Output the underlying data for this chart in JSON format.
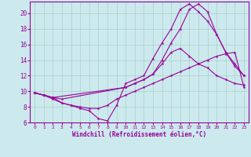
{
  "xlabel": "Windchill (Refroidissement éolien,°C)",
  "bg_color": "#cceaed",
  "grid_color": "#aacccc",
  "line_color": "#990099",
  "line1_x": [
    0,
    1,
    2,
    3,
    4,
    5,
    6,
    7,
    8,
    9,
    10,
    11,
    12,
    13,
    14,
    15,
    16,
    17,
    18,
    19,
    20,
    21,
    22,
    23
  ],
  "line1_y": [
    9.8,
    9.5,
    9.2,
    8.5,
    8.2,
    7.8,
    7.5,
    6.5,
    6.2,
    8.2,
    11.0,
    11.5,
    12.0,
    14.2,
    16.2,
    18.0,
    20.5,
    21.2,
    20.2,
    19.0,
    17.3,
    15.0,
    13.2,
    12.0
  ],
  "line2_x": [
    0,
    1,
    2,
    3,
    4,
    5,
    6,
    7,
    8,
    9,
    10,
    11,
    12,
    13,
    14,
    15,
    16,
    17,
    18,
    19,
    20,
    21,
    22,
    23
  ],
  "line2_y": [
    9.8,
    9.5,
    9.0,
    8.5,
    8.2,
    8.0,
    7.8,
    7.8,
    8.2,
    9.0,
    9.5,
    10.0,
    10.5,
    11.0,
    11.5,
    12.0,
    12.5,
    13.0,
    13.5,
    14.0,
    14.5,
    14.8,
    15.0,
    10.5
  ],
  "line3_x": [
    0,
    1,
    2,
    3,
    10,
    11,
    12,
    13,
    14,
    15,
    16,
    17,
    18,
    19,
    20,
    21,
    22,
    23
  ],
  "line3_y": [
    9.8,
    9.5,
    9.2,
    9.0,
    10.5,
    11.0,
    11.5,
    12.2,
    13.5,
    15.0,
    15.5,
    14.5,
    13.5,
    13.0,
    12.0,
    11.5,
    11.0,
    10.8
  ],
  "line4_x": [
    0,
    1,
    2,
    10,
    11,
    12,
    13,
    14,
    15,
    16,
    17,
    18,
    19,
    20,
    21,
    22,
    23
  ],
  "line4_y": [
    9.8,
    9.5,
    9.2,
    10.5,
    11.0,
    11.5,
    12.2,
    14.0,
    16.2,
    18.0,
    20.5,
    21.2,
    20.2,
    17.3,
    15.0,
    13.5,
    12.0
  ],
  "ylim_min": 6,
  "ylim_max": 21,
  "xlim_min": -0.5,
  "xlim_max": 23.5,
  "yticks": [
    6,
    8,
    10,
    12,
    14,
    16,
    18,
    20
  ],
  "xticks": [
    0,
    1,
    2,
    3,
    4,
    5,
    6,
    7,
    8,
    9,
    10,
    11,
    12,
    13,
    14,
    15,
    16,
    17,
    18,
    19,
    20,
    21,
    22,
    23
  ]
}
